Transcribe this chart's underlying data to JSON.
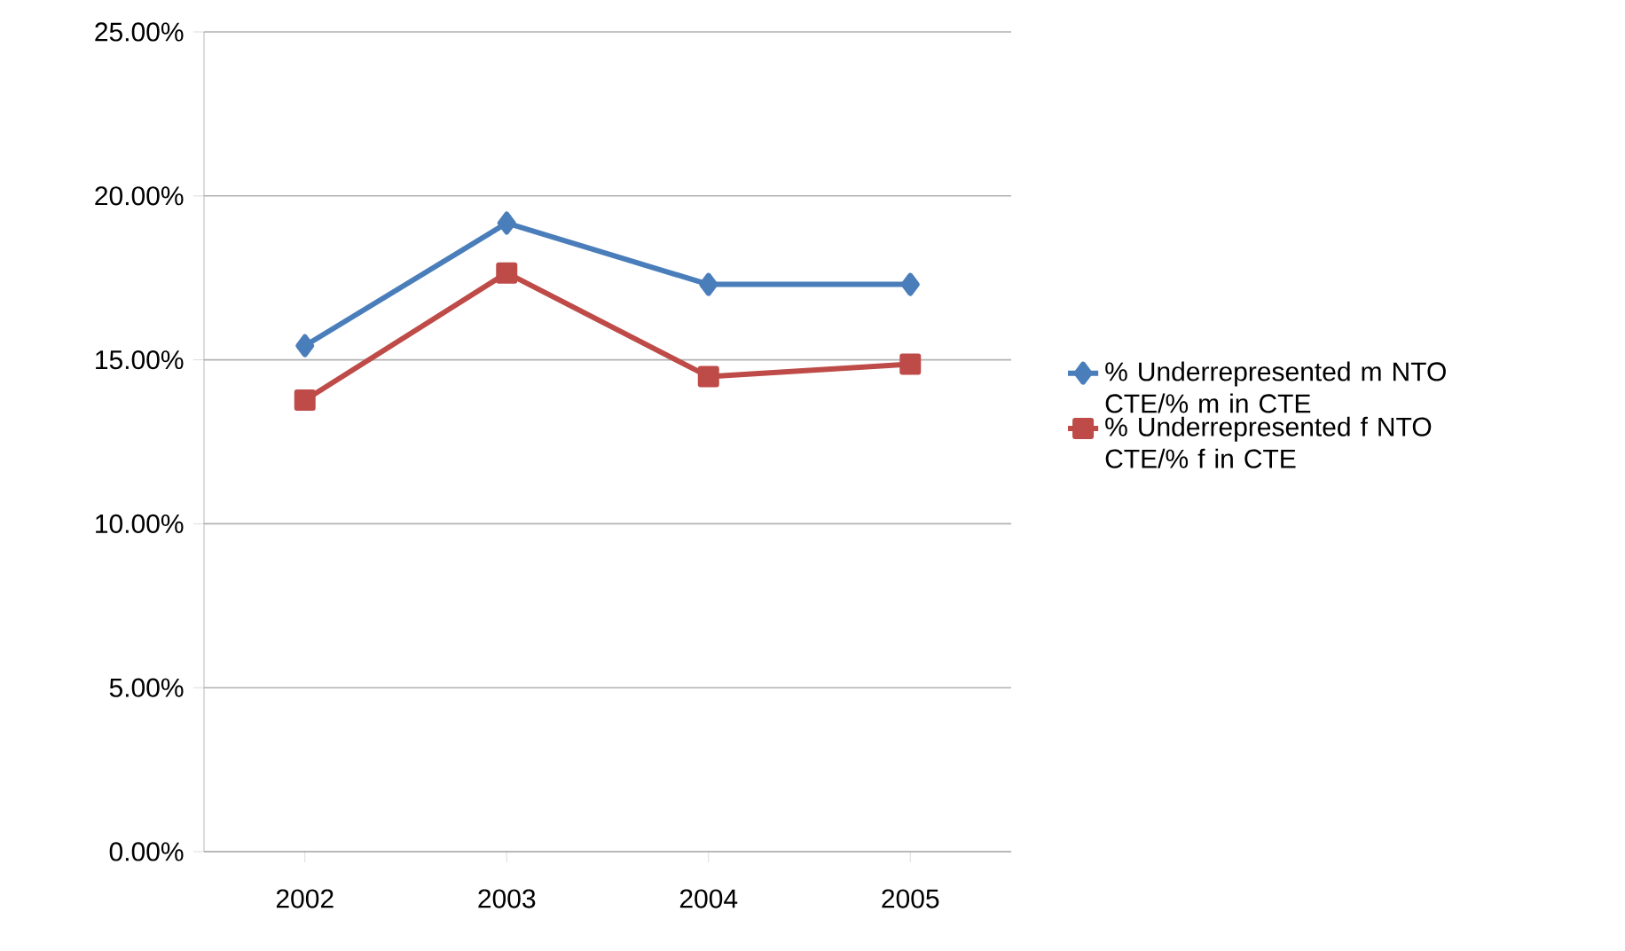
{
  "chart_data": {
    "type": "line",
    "categories": [
      "2002",
      "2003",
      "2004",
      "2005"
    ],
    "series": [
      {
        "name": "% Underrepresented m NTO CTE/% m in CTE",
        "color": "#4a7ebb",
        "marker": "diamond",
        "values": [
          15.43,
          19.17,
          17.3,
          17.3
        ]
      },
      {
        "name": "% Underrepresented f NTO CTE/% f in CTE",
        "color": "#be4b48",
        "marker": "square",
        "values": [
          13.77,
          17.65,
          14.49,
          14.87
        ]
      }
    ],
    "ylim": [
      0,
      25
    ],
    "yticks": [
      {
        "value": 0,
        "label": "0.00%"
      },
      {
        "value": 5,
        "label": "5.00%"
      },
      {
        "value": 10,
        "label": "10.00%"
      },
      {
        "value": 15,
        "label": "15.00%"
      },
      {
        "value": 20,
        "label": "20.00%"
      },
      {
        "value": 25,
        "label": "25.00%"
      }
    ],
    "grid": "y",
    "legend": "right",
    "line_style": "solid"
  }
}
